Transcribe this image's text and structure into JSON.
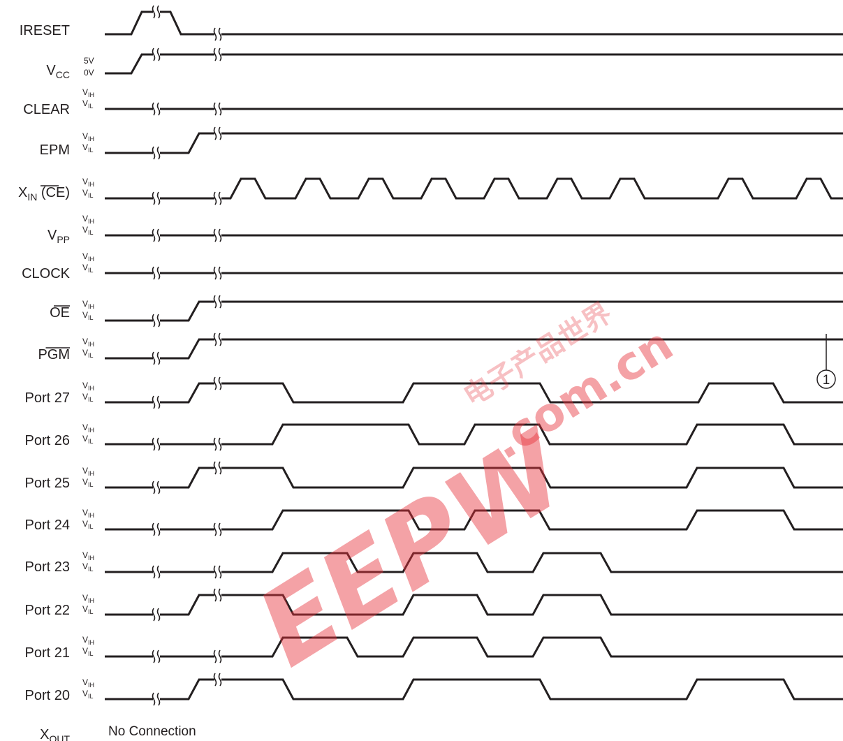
{
  "signals": [
    {
      "label": "IRESET",
      "sub": "",
      "suffix": "",
      "overbar": false,
      "levels": [
        "",
        ""
      ]
    },
    {
      "label": "V",
      "sub": "CC",
      "suffix": "",
      "overbar": false,
      "levels": [
        "5V",
        "0V"
      ]
    },
    {
      "label": "CLEAR",
      "sub": "",
      "suffix": "",
      "overbar": false,
      "levels": [
        "VIH",
        "VIL"
      ]
    },
    {
      "label": "EPM",
      "sub": "",
      "suffix": "",
      "overbar": false,
      "levels": [
        "VIH",
        "VIL"
      ]
    },
    {
      "label": "X",
      "sub": "IN",
      "suffix": " (CE)",
      "overbar": false,
      "levels": [
        "VIH",
        "VIL"
      ]
    },
    {
      "label": "V",
      "sub": "PP",
      "suffix": "",
      "overbar": false,
      "levels": [
        "VIH",
        "VIL"
      ]
    },
    {
      "label": "CLOCK",
      "sub": "",
      "suffix": "",
      "overbar": false,
      "levels": [
        "VIH",
        "VIL"
      ]
    },
    {
      "label": "OE",
      "sub": "",
      "suffix": "",
      "overbar": true,
      "levels": [
        "VIH",
        "VIL"
      ]
    },
    {
      "label": "PGM",
      "sub": "",
      "suffix": "",
      "overbar": true,
      "levels": [
        "VIH",
        "VIL"
      ]
    },
    {
      "label": "Port 27",
      "sub": "",
      "suffix": "",
      "overbar": false,
      "levels": [
        "VIH",
        "VIL"
      ]
    },
    {
      "label": "Port 26",
      "sub": "",
      "suffix": "",
      "overbar": false,
      "levels": [
        "VIH",
        "VIL"
      ]
    },
    {
      "label": "Port 25",
      "sub": "",
      "suffix": "",
      "overbar": false,
      "levels": [
        "VIH",
        "VIL"
      ]
    },
    {
      "label": "Port 24",
      "sub": "",
      "suffix": "",
      "overbar": false,
      "levels": [
        "VIH",
        "VIL"
      ]
    },
    {
      "label": "Port 23",
      "sub": "",
      "suffix": "",
      "overbar": false,
      "levels": [
        "VIH",
        "VIL"
      ]
    },
    {
      "label": "Port 22",
      "sub": "",
      "suffix": "",
      "overbar": false,
      "levels": [
        "VIH",
        "VIL"
      ]
    },
    {
      "label": "Port 21",
      "sub": "",
      "suffix": "",
      "overbar": false,
      "levels": [
        "VIH",
        "VIL"
      ]
    },
    {
      "label": "Port 20",
      "sub": "",
      "suffix": "",
      "overbar": false,
      "levels": [
        "VIH",
        "VIL"
      ]
    }
  ],
  "xout": {
    "label": "X",
    "sub": "OUT",
    "note": "No Connection"
  },
  "callout": "1",
  "watermark": {
    "logo": "EEPW",
    "url": ".com.cn",
    "cn": "电子产品世界",
    "color": "#e8323c"
  },
  "colors": {
    "ink": "#231f20",
    "watermark": "#e8323c"
  }
}
